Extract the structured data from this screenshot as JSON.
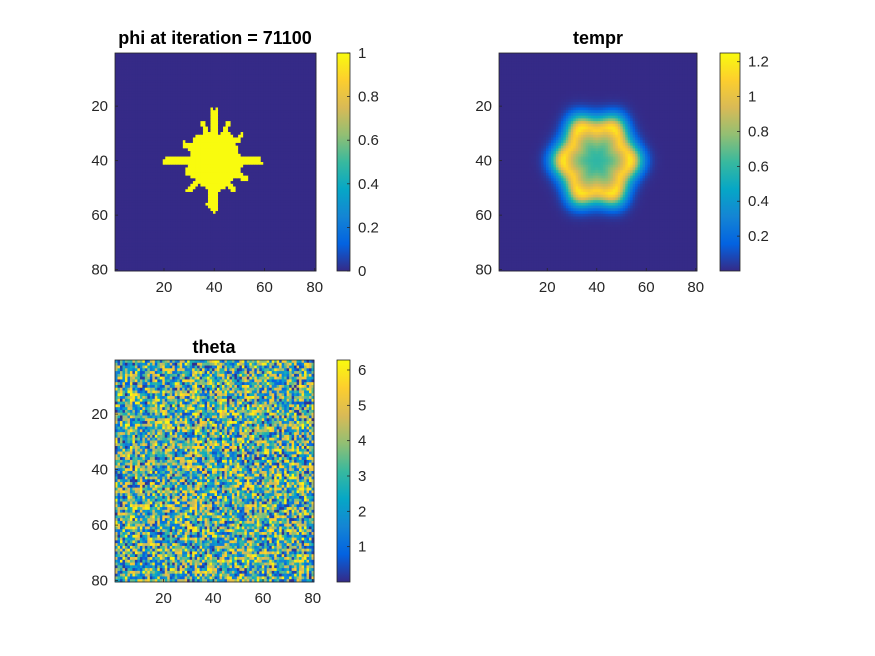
{
  "chart_data": [
    {
      "type": "heatmap",
      "title": "phi at iteration = 71100",
      "field": "phi",
      "grid_size": [
        80,
        80
      ],
      "x_ticks": [
        20,
        40,
        60,
        80
      ],
      "y_ticks": [
        20,
        40,
        60,
        80
      ],
      "xlim": [
        0.5,
        80.5
      ],
      "ylim": [
        0.5,
        80.5
      ],
      "y_direction": "reverse",
      "colorbar": {
        "limits": [
          0,
          1
        ],
        "ticks": [
          "0",
          "0.2",
          "0.4",
          "0.6",
          "0.8",
          "1"
        ],
        "values": [
          0,
          0.2,
          0.4,
          0.6,
          0.8,
          1
        ]
      },
      "colormap": "parula",
      "pattern": {
        "kind": "dendrite",
        "center": [
          40,
          40
        ],
        "core_radius": 11,
        "value_inside": 1,
        "value_outside": 0
      }
    },
    {
      "type": "heatmap",
      "title": "tempr",
      "field": "tempr",
      "grid_size": [
        80,
        80
      ],
      "x_ticks": [
        20,
        40,
        60,
        80
      ],
      "y_ticks": [
        20,
        40,
        60,
        80
      ],
      "xlim": [
        0.5,
        80.5
      ],
      "ylim": [
        0.5,
        80.5
      ],
      "y_direction": "reverse",
      "colorbar": {
        "limits": [
          0,
          1.25
        ],
        "ticks": [
          "0.2",
          "0.4",
          "0.6",
          "0.8",
          "1",
          "1.2"
        ],
        "values": [
          0.2,
          0.4,
          0.6,
          0.8,
          1.0,
          1.2
        ]
      },
      "colormap": "parula",
      "pattern": {
        "kind": "diffused-ring",
        "center": [
          40,
          40
        ],
        "center_value": 0.6,
        "ring_peak": 1.1,
        "ring_radius": 12,
        "background": 0
      }
    },
    {
      "type": "heatmap",
      "title": "theta",
      "field": "theta",
      "grid_size": [
        80,
        80
      ],
      "x_ticks": [
        20,
        40,
        60,
        80
      ],
      "y_ticks": [
        20,
        40,
        60,
        80
      ],
      "xlim": [
        0.5,
        80.5
      ],
      "ylim": [
        0.5,
        80.5
      ],
      "y_direction": "reverse",
      "colorbar": {
        "limits": [
          0,
          6.283
        ],
        "ticks": [
          "1",
          "2",
          "3",
          "4",
          "5",
          "6"
        ],
        "values": [
          1,
          2,
          3,
          4,
          5,
          6
        ]
      },
      "colormap": "parula",
      "pattern": {
        "kind": "uniform-random",
        "range": [
          0,
          6.283
        ]
      }
    }
  ],
  "colors": {
    "parula": [
      "#352A87",
      "#0363E1",
      "#1485D4",
      "#06A7C6",
      "#38B99E",
      "#92BF73",
      "#D9BA56",
      "#FCCE2E",
      "#F9FB0E"
    ],
    "axis": "#262626",
    "background": "#FFFFFF"
  }
}
